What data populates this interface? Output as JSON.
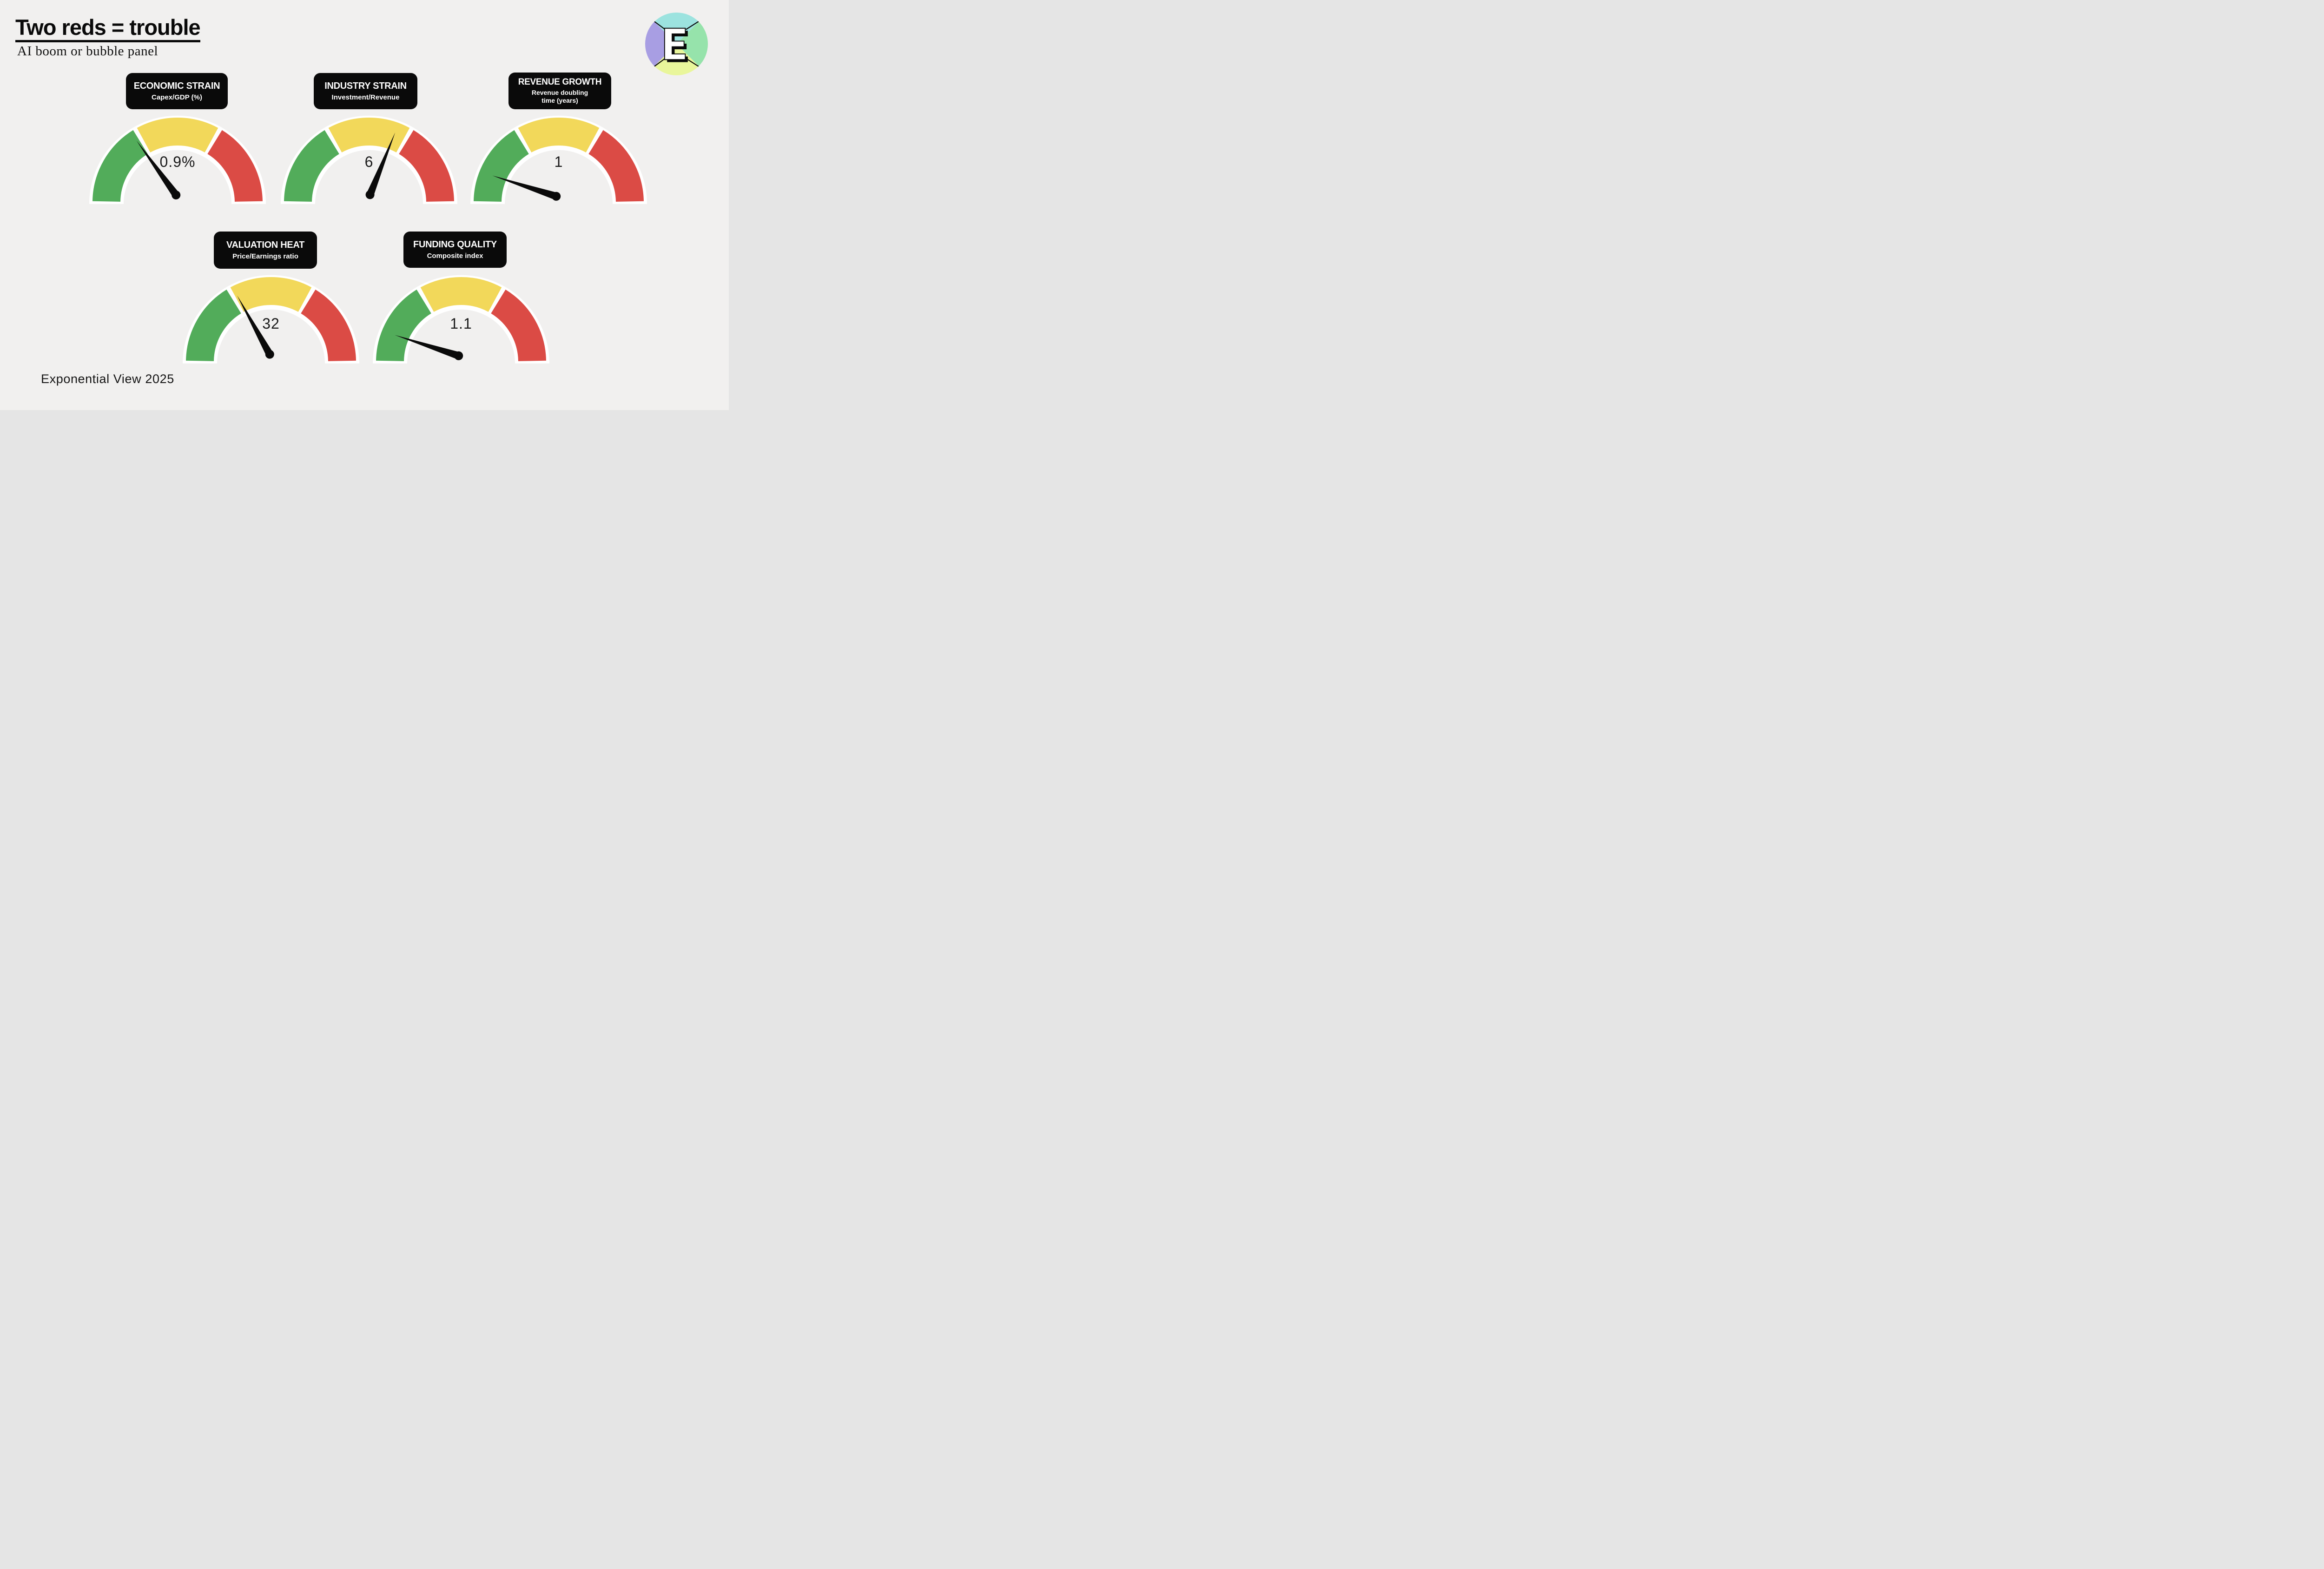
{
  "page": {
    "background": "#f1f0ef"
  },
  "header": {
    "title": "Two reds = trouble",
    "subtitle": "AI boom or bubble panel"
  },
  "footer": {
    "credit": "Exponential View 2025"
  },
  "logo": {
    "name": "exponential-view-logo",
    "letter": "E",
    "colors": {
      "top": "#9CE3DF",
      "left": "#A89EE3",
      "right": "#96E3AB",
      "bottom": "#E9F69B"
    }
  },
  "chart_data": {
    "type": "gauge",
    "layout": "panel of 5 semicircular gauges, 3 in top row and 2 in bottom row",
    "segments": {
      "labels": [
        "green",
        "yellow",
        "red"
      ],
      "colors": [
        "#52AC5A",
        "#F2D85A",
        "#DB4B45"
      ],
      "arc_degrees": [
        60,
        60,
        60
      ],
      "outline_color": "#ffffff"
    },
    "gauges": [
      {
        "title": "ECONOMIC STRAIN",
        "subtitle": "Capex/GDP (%)",
        "value": 0.9,
        "value_label": "0.9%",
        "needle_zone": "green, near green/yellow boundary",
        "needle_angle_from_vertical_deg": -36
      },
      {
        "title": "INDUSTRY STRAIN",
        "subtitle": "Investment/Revenue",
        "value": 6,
        "value_label": "6",
        "needle_zone": "yellow, near yellow/red boundary",
        "needle_angle_from_vertical_deg": 22
      },
      {
        "title": "REVENUE GROWTH",
        "subtitle": "Revenue doubling time (years)",
        "subtitle_line1": "Revenue doubling",
        "subtitle_line2": "time (years)",
        "value": 1,
        "value_label": "1",
        "needle_zone": "green, low end",
        "needle_angle_from_vertical_deg": -72
      },
      {
        "title": "VALUATION HEAT",
        "subtitle": "Price/Earnings ratio",
        "value": 32,
        "value_label": "32",
        "needle_zone": "at green/yellow boundary, just into yellow",
        "needle_angle_from_vertical_deg": -29
      },
      {
        "title": "FUNDING QUALITY",
        "subtitle": "Composite index",
        "value": 1.1,
        "value_label": "1.1",
        "needle_zone": "green, low end",
        "needle_angle_from_vertical_deg": -72
      }
    ]
  }
}
